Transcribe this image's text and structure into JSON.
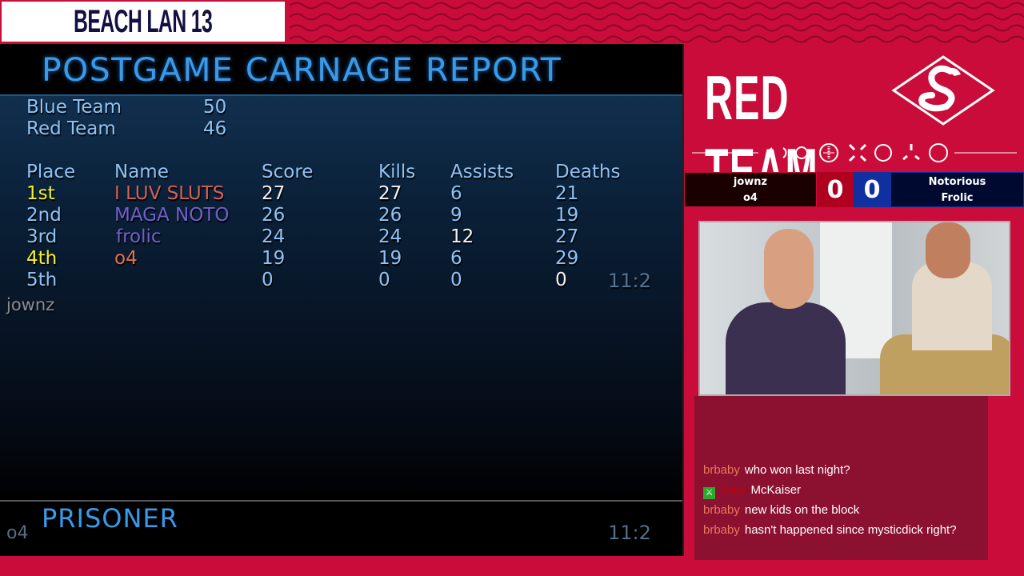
{
  "header": {
    "event_title": "BEACH LAN 13"
  },
  "game": {
    "title": "POSTGAME CARNAGE REPORT",
    "teams": [
      {
        "name": "Blue Team",
        "score": "50"
      },
      {
        "name": "Red Team",
        "score": "46"
      }
    ],
    "columns": [
      "Place",
      "Name",
      "Score",
      "Kills",
      "Assists",
      "Deaths"
    ],
    "rows": [
      {
        "place": "1st",
        "name": "I LUV SLUTS",
        "score": "27",
        "kills": "27",
        "assists": "6",
        "deaths": "21"
      },
      {
        "place": "2nd",
        "name": "MAGA NOTO",
        "score": "26",
        "kills": "26",
        "assists": "9",
        "deaths": "19"
      },
      {
        "place": "3rd",
        "name": "frolic",
        "score": "24",
        "kills": "24",
        "assists": "12",
        "deaths": "27"
      },
      {
        "place": "4th",
        "name": "o4",
        "score": "19",
        "kills": "19",
        "assists": "6",
        "deaths": "29"
      },
      {
        "place": "5th",
        "name": "",
        "score": "0",
        "kills": "0",
        "assists": "0",
        "deaths": "0"
      }
    ],
    "overlay_player_top": "jownz",
    "timer_top": "11:2",
    "gametype": "PRISONER",
    "overlay_player_bottom": "o4",
    "timer_bottom": "11:2"
  },
  "panel": {
    "team_title": "RED TEAM",
    "red_players": [
      "jownz",
      "o4"
    ],
    "red_score": "0",
    "blue_score": "0",
    "blue_players": [
      "Notorious",
      "Frolic"
    ],
    "colors": {
      "red": "#c90c3a",
      "blue": "#1030a0"
    }
  },
  "chat": [
    {
      "user": "brbaby",
      "text": "who won last night?"
    },
    {
      "user": "Silos",
      "text": "McKaiser",
      "badge": "green-sword-badge"
    },
    {
      "user": "brbaby",
      "text": "new kids on the block"
    },
    {
      "user": "brbaby",
      "text": "hasn't happened since mysticdick right?"
    }
  ]
}
